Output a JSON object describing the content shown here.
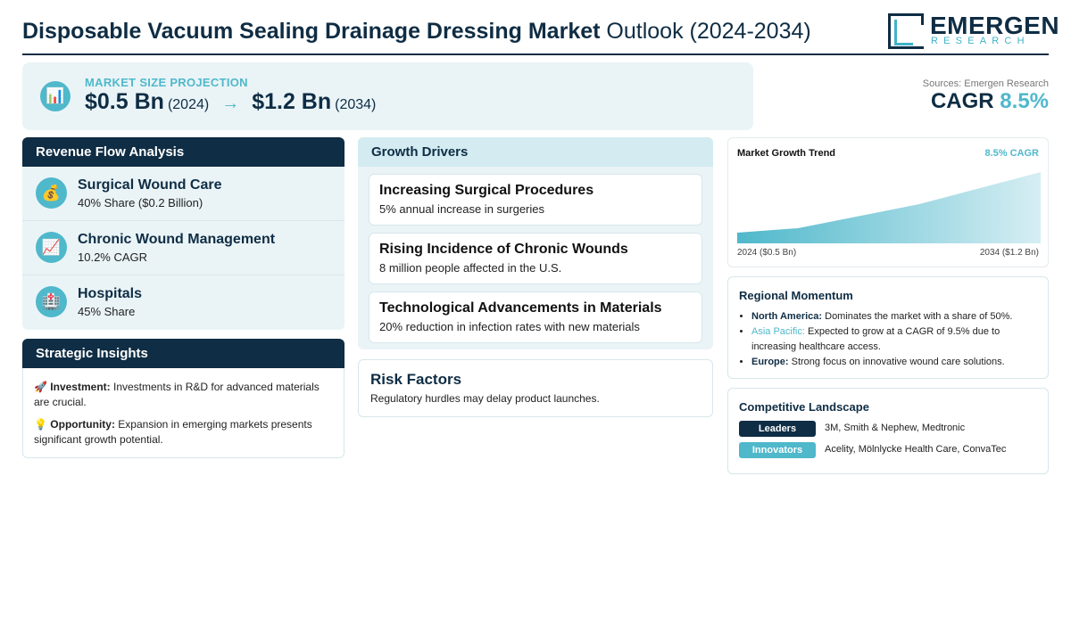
{
  "header": {
    "title_bold": "Disposable Vacuum Sealing Drainage Dressing Market",
    "title_light": "Outlook (2024-2034)",
    "logo_main": "EMERGEN",
    "logo_sub": "RESEARCH"
  },
  "projection": {
    "icon": "bar-chart-icon",
    "label": "MARKET SIZE PROJECTION",
    "start_value": "$0.5 Bn",
    "start_year": "(2024)",
    "arrow": "→",
    "end_value": "$1.2 Bn",
    "end_year": "(2034)"
  },
  "sources": "Sources: Emergen Research",
  "cagr": {
    "label": "CAGR",
    "value": "8.5%"
  },
  "revenue": {
    "title": "Revenue Flow Analysis",
    "items": [
      {
        "icon": "money-bag-icon",
        "glyph": "💰",
        "title": "Surgical Wound Care",
        "sub": "40% Share ($0.2 Billion)"
      },
      {
        "icon": "trend-chart-icon",
        "glyph": "📈",
        "title": "Chronic Wound Management",
        "sub": "10.2% CAGR"
      },
      {
        "icon": "hospital-icon",
        "glyph": "🏥",
        "title": "Hospitals",
        "sub": "45% Share"
      }
    ]
  },
  "insights": {
    "title": "Strategic Insights",
    "items": [
      {
        "glyph": "🚀",
        "label": "Investment:",
        "text": "Investments in R&D for advanced materials are crucial."
      },
      {
        "glyph": "💡",
        "label": "Opportunity:",
        "text": "Expansion in emerging markets presents significant growth potential."
      }
    ]
  },
  "drivers": {
    "title": "Growth Drivers",
    "items": [
      {
        "title": "Increasing Surgical Procedures",
        "sub": "5% annual increase in surgeries"
      },
      {
        "title": "Rising Incidence of Chronic Wounds",
        "sub": "8 million people affected in the U.S."
      },
      {
        "title": "Technological Advancements in Materials",
        "sub": "20% reduction in infection rates with new materials"
      }
    ]
  },
  "risk": {
    "title": "Risk Factors",
    "sub": "Regulatory hurdles may delay product launches."
  },
  "trend": {
    "title": "Market Growth Trend",
    "cagr": "8.5% CAGR",
    "left_label": "2024 ($0.5 Bn)",
    "right_label": "2034 ($1.2 Bn)"
  },
  "regional": {
    "title": "Regional Momentum",
    "items": [
      {
        "label": "North America:",
        "text": "Dominates the market with a share of 50%."
      },
      {
        "label": "Asia Pacific:",
        "text": "Expected to grow at a CAGR of 9.5% due to increasing healthcare access."
      },
      {
        "label": "Europe:",
        "text": "Strong focus on innovative wound care solutions."
      }
    ]
  },
  "competitive": {
    "title": "Competitive Landscape",
    "rows": [
      {
        "badge": "Leaders",
        "names": "3M, Smith & Nephew, Medtronic",
        "color": "#0f2d44"
      },
      {
        "badge": "Innovators",
        "names": "Acelity, Mölnlycke Health Care, ConvaTec",
        "color": "#4fb8cb"
      }
    ]
  },
  "colors": {
    "navy": "#0f2d44",
    "teal": "#4fb8cb",
    "panel": "#eaf4f7"
  }
}
